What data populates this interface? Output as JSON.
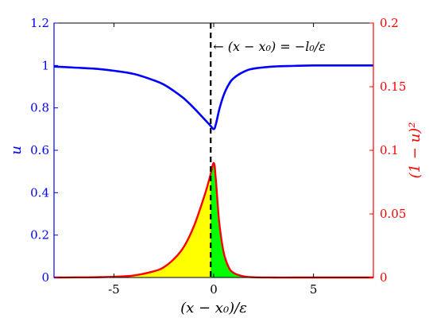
{
  "colors": {
    "u_curve": "#0000ff",
    "density_curve": "#ff0000",
    "fill_left": "#ffff00",
    "fill_right": "#00ff00",
    "marker_line": "#000000",
    "axis_frame": "#000000",
    "left_axis": "#0000ff",
    "right_axis": "#ff0000"
  },
  "chart_data": {
    "type": "line",
    "title": "",
    "xlabel": "(x − x₀)/ε",
    "ylabel_left": "u",
    "ylabel_right": "(1 − u)²",
    "xlim": [
      -8,
      8
    ],
    "ylim_left": [
      0,
      1.2
    ],
    "ylim_right": [
      0,
      0.2
    ],
    "x_ticks": [
      -5,
      0,
      5
    ],
    "x_tick_labels": [
      "-5",
      "0",
      "5"
    ],
    "y_left_ticks": [
      0,
      0.2,
      0.4,
      0.6,
      0.8,
      1,
      1.2
    ],
    "y_left_tick_labels": [
      "0",
      "0.2",
      "0.4",
      "0.6",
      "0.8",
      "1",
      "1.2"
    ],
    "y_right_ticks": [
      0,
      0.05,
      0.1,
      0.15,
      0.2
    ],
    "y_right_tick_labels": [
      "0",
      "0.05",
      "0.1",
      "0.15",
      "0.2"
    ],
    "grid": false,
    "marker_x": -0.15,
    "annotation": "← (x − x₀) = −l₀/ε",
    "series": [
      {
        "axis": "left",
        "color_key": "u_curve",
        "x": [
          -8,
          -7,
          -6,
          -5,
          -4,
          -3,
          -2.5,
          -2,
          -1.5,
          -1,
          -0.5,
          -0.2,
          0,
          0.1,
          0.2,
          0.3,
          0.5,
          0.75,
          1,
          1.5,
          2,
          3,
          4,
          5,
          6,
          7,
          8
        ],
        "y": [
          0.995,
          0.99,
          0.985,
          0.975,
          0.96,
          0.93,
          0.91,
          0.88,
          0.845,
          0.8,
          0.75,
          0.72,
          0.7,
          0.72,
          0.76,
          0.8,
          0.86,
          0.91,
          0.94,
          0.97,
          0.985,
          0.995,
          0.998,
          1.0,
          1.0,
          1.0,
          1.0
        ]
      },
      {
        "axis": "right",
        "color_key": "density_curve",
        "x": [
          -8,
          -7,
          -6,
          -5,
          -4,
          -3,
          -2.5,
          -2,
          -1.5,
          -1,
          -0.5,
          -0.2,
          0,
          0.1,
          0.2,
          0.3,
          0.5,
          0.75,
          1,
          1.5,
          2,
          3,
          4,
          5,
          6,
          7,
          8
        ],
        "y": [
          0.0,
          0.0001,
          0.0002,
          0.0006,
          0.0016,
          0.0049,
          0.0081,
          0.0144,
          0.024,
          0.04,
          0.0625,
          0.0784,
          0.09,
          0.0784,
          0.0576,
          0.04,
          0.0196,
          0.0081,
          0.0036,
          0.0009,
          0.0002,
          0.0,
          0.0,
          0.0,
          0.0,
          0.0,
          0.0
        ]
      }
    ]
  }
}
